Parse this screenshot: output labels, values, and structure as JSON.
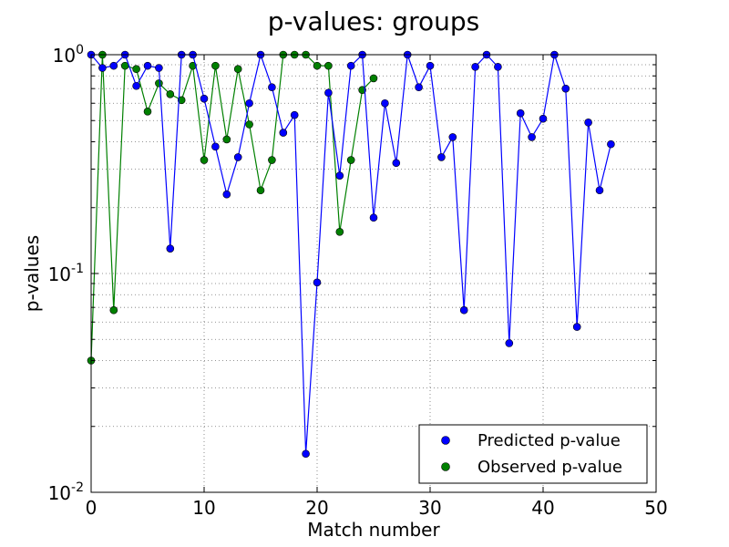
{
  "chart_data": {
    "type": "line",
    "title": "p-values: groups",
    "xlabel": "Match number",
    "ylabel": "p-values",
    "xlim": [
      0,
      50
    ],
    "ylim": [
      0.01,
      1
    ],
    "yscale": "log",
    "grid": true,
    "legend_position": "bottom-right",
    "x_ticks": [
      {
        "value": 0,
        "label": "0"
      },
      {
        "value": 10,
        "label": "10"
      },
      {
        "value": 20,
        "label": "20"
      },
      {
        "value": 30,
        "label": "30"
      },
      {
        "value": 40,
        "label": "40"
      },
      {
        "value": 50,
        "label": "50"
      }
    ],
    "y_ticks": [
      {
        "value": 0.01,
        "base": "10",
        "exp": "-2"
      },
      {
        "value": 0.1,
        "base": "10",
        "exp": "-1"
      },
      {
        "value": 1,
        "base": "10",
        "exp": "0"
      }
    ],
    "series": [
      {
        "name": "Predicted p-value",
        "color": "#0000ff",
        "x": [
          0,
          1,
          2,
          3,
          4,
          5,
          6,
          7,
          8,
          9,
          10,
          11,
          12,
          13,
          14,
          15,
          16,
          17,
          18,
          19,
          20,
          21,
          22,
          23,
          24,
          25,
          26,
          27,
          28,
          29,
          30,
          31,
          32,
          33,
          34,
          35,
          36,
          37,
          38,
          39,
          40,
          41,
          42,
          43,
          44,
          45,
          46
        ],
        "values": [
          1.0,
          0.87,
          0.89,
          1.0,
          0.72,
          0.89,
          0.87,
          0.13,
          1.0,
          1.0,
          0.63,
          0.38,
          0.23,
          0.34,
          0.6,
          1.0,
          0.71,
          0.44,
          0.53,
          0.015,
          0.091,
          0.67,
          0.28,
          0.89,
          1.0,
          0.18,
          0.6,
          0.32,
          1.0,
          0.71,
          0.89,
          0.34,
          0.42,
          0.068,
          0.88,
          1.0,
          0.88,
          0.048,
          0.54,
          0.42,
          0.51,
          1.0,
          0.7,
          0.057,
          0.49,
          0.24,
          0.39
        ]
      },
      {
        "name": "Observed p-value",
        "color": "#008000",
        "x": [
          0,
          1,
          2,
          3,
          4,
          5,
          6,
          7,
          8,
          9,
          10,
          11,
          12,
          13,
          14,
          15,
          16,
          17,
          18,
          19,
          20,
          21,
          22,
          23,
          24,
          25
        ],
        "values": [
          0.04,
          1.0,
          0.068,
          0.89,
          0.86,
          0.55,
          0.74,
          0.66,
          0.62,
          0.89,
          0.33,
          0.89,
          0.41,
          0.86,
          0.48,
          0.24,
          0.33,
          1.0,
          1.0,
          1.0,
          0.89,
          0.89,
          0.155,
          0.33,
          0.69,
          0.78
        ]
      }
    ]
  }
}
